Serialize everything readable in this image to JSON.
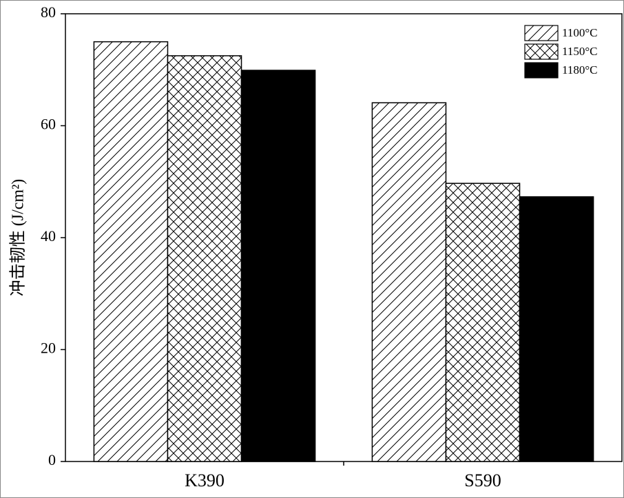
{
  "chart_data": {
    "type": "bar",
    "y_label": "冲击韧性 (J/cm²)",
    "categories": [
      "K390",
      "S590"
    ],
    "series": [
      {
        "name": "1100°C",
        "color": "#000000",
        "pattern": "hatch",
        "values": [
          75,
          64.1
        ]
      },
      {
        "name": "1150°C",
        "color": "#000000",
        "pattern": "crosshatch",
        "values": [
          72.5,
          49.7
        ]
      },
      {
        "name": "1180°C",
        "color": "#000000",
        "pattern": "solid",
        "values": [
          69.9,
          47.3
        ]
      }
    ],
    "ylim": [
      0,
      80
    ],
    "yticks": [
      0,
      20,
      40,
      60,
      80
    ],
    "grid": false,
    "legend": "upper right"
  }
}
